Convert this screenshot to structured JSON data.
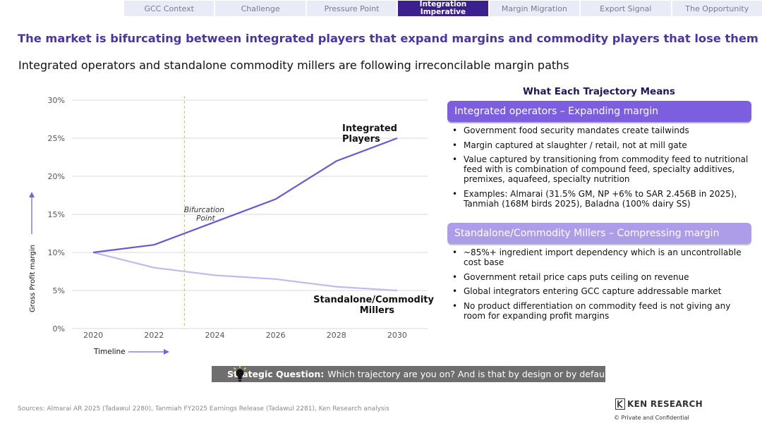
{
  "tabs": [
    {
      "label": "GCC Context"
    },
    {
      "label": "Challenge"
    },
    {
      "label": "Pressure Point"
    },
    {
      "label": "Integration Imperative",
      "active": true
    },
    {
      "label": "Margin Migration"
    },
    {
      "label": "Export Signal"
    },
    {
      "label": "The Opportunity"
    }
  ],
  "headline": "The market is bifurcating between integrated players that expand margins and commodity players that lose them",
  "subhead": "Integrated operators and standalone commodity millers are following irreconcilable margin paths",
  "chart_data": {
    "type": "line",
    "x": [
      2020,
      2022,
      2024,
      2026,
      2028,
      2030
    ],
    "xticks": [
      "2020",
      "2022",
      "2024",
      "2026",
      "2028",
      "2030"
    ],
    "yticks": [
      "0%",
      "5%",
      "10%",
      "15%",
      "20%",
      "25%",
      "30%"
    ],
    "ylim": [
      0,
      30
    ],
    "xlim": [
      2019.3,
      2031
    ],
    "ylabel": "Gross Profit margin",
    "xlabel": "Timeline",
    "grid": true,
    "series": [
      {
        "name": "Integrated Players",
        "values": [
          10,
          11,
          14,
          17,
          22,
          25
        ],
        "color": "#6f55d6"
      },
      {
        "name": "Standalone/Commodity Millers",
        "values": [
          10,
          8,
          7,
          6.5,
          5.5,
          5
        ],
        "color": "#c4b8ef"
      }
    ],
    "annotation": {
      "text": "Bifurcation Point",
      "x": 2023
    }
  },
  "right_panel": {
    "title": "What Each Trajectory Means",
    "integrated_header": "Integrated operators – Expanding margin",
    "integrated_bullets": [
      "Government food security mandates create tailwinds",
      "Margin captured at slaughter / retail, not at mill gate",
      "Value captured by transitioning from commodity feed to nutritional feed with is combination of compound feed, specialty additives, premixes, aquafeed, specialty nutrition",
      "Examples: Almarai (31.5% GM, NP +6% to SAR 2.456B in 2025), Tanmiah (168M birds 2025), Baladna (100% dairy SS)"
    ],
    "standalone_header": "Standalone/Commodity Millers – Compressing margin",
    "standalone_bullets": [
      "~85%+ ingredient import dependency which is an uncontrollable cost base",
      "Government retail price caps puts ceiling on revenue",
      "Global integrators entering GCC capture addressable market",
      "No product differentiation on commodity feed is not giving any room for expanding profit margins"
    ]
  },
  "banner": {
    "label": "Strategic Question:",
    "text": "Which trajectory are you on? And is that by design or by default?"
  },
  "sources": "Sources: Almarai AR 2025 (Tadawul 2280), Tanmiah FY2025 Earnings Release (Tadawul 2281), Ken Research analysis",
  "logo": "KEN RESEARCH",
  "confidential": "©   Private and Confidential",
  "colors": {
    "accent": "#4a34a8",
    "active_tab": "#3b1f8c",
    "integrated": "#6f55d6",
    "standalone": "#c4b8ef",
    "marker": "#f5c542"
  }
}
